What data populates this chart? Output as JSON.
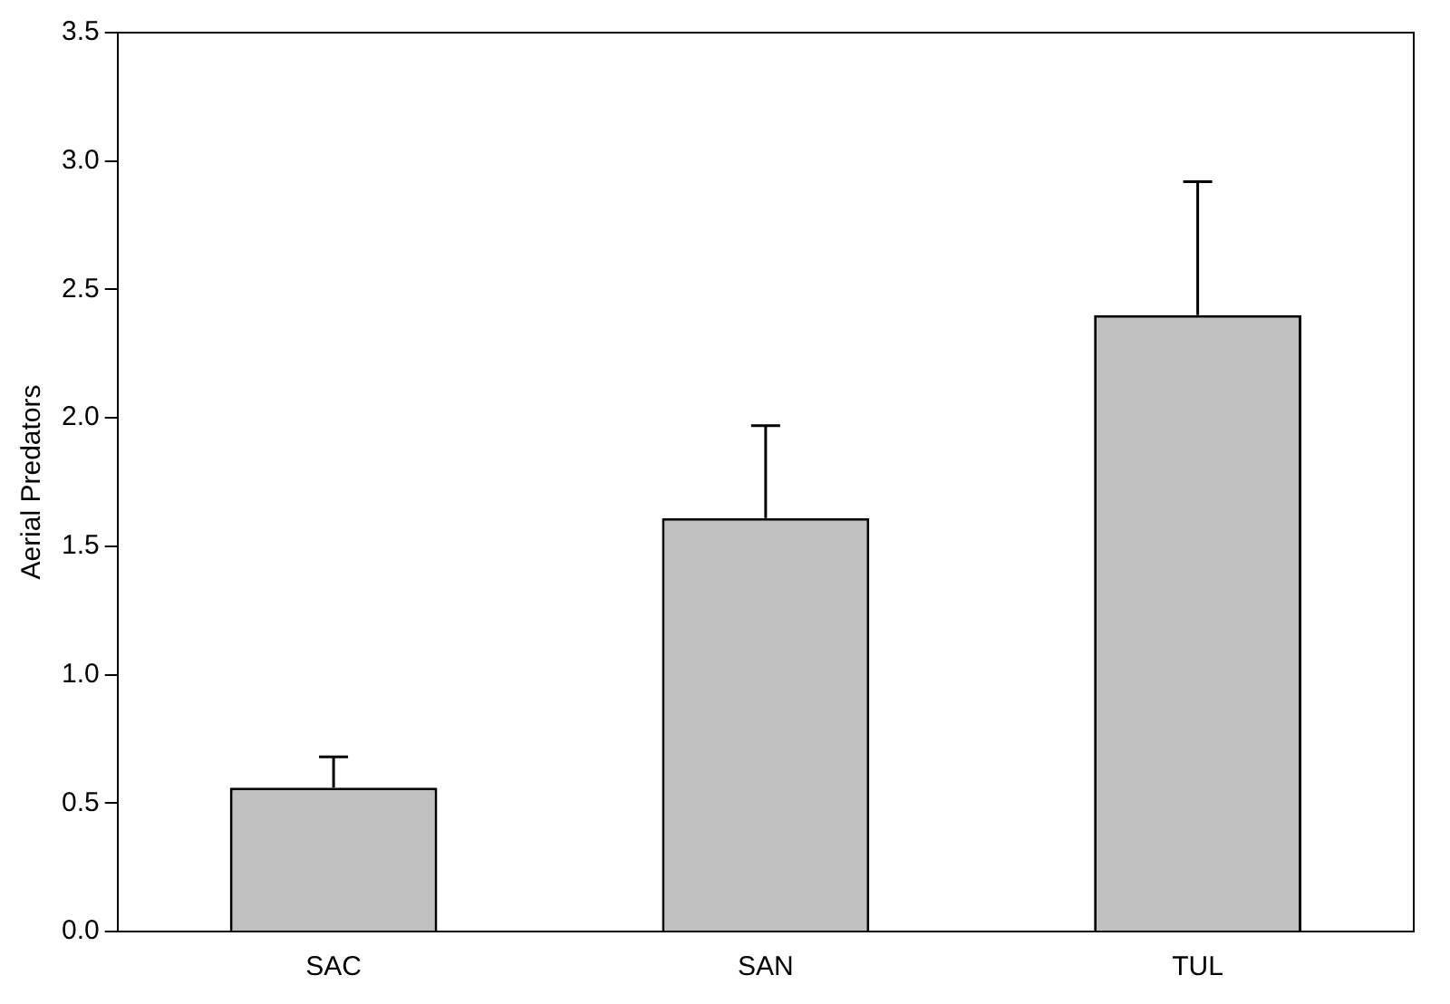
{
  "chart_data": {
    "type": "bar",
    "ylabel": "Aerial Predators",
    "categories": [
      "SAC",
      "SAN",
      "TUL"
    ],
    "values": [
      0.56,
      1.61,
      2.4
    ],
    "errors": [
      [
        0.56,
        0.68
      ],
      [
        1.61,
        1.97
      ],
      [
        2.4,
        2.92
      ]
    ],
    "color": "#c0c0c0",
    "ylim": [
      0,
      3.5
    ],
    "yticks": [
      {
        "value": 0,
        "label": "0.0"
      },
      {
        "value": 0.5,
        "label": "0.5"
      },
      {
        "value": 1,
        "label": "1.0"
      },
      {
        "value": 1.5,
        "label": "1.5"
      },
      {
        "value": 2,
        "label": "2.0"
      },
      {
        "value": 2.5,
        "label": "2.5"
      },
      {
        "value": 3,
        "label": "3.0"
      },
      {
        "value": 3.5,
        "label": "3.5"
      }
    ],
    "grid": false,
    "legend": false
  }
}
